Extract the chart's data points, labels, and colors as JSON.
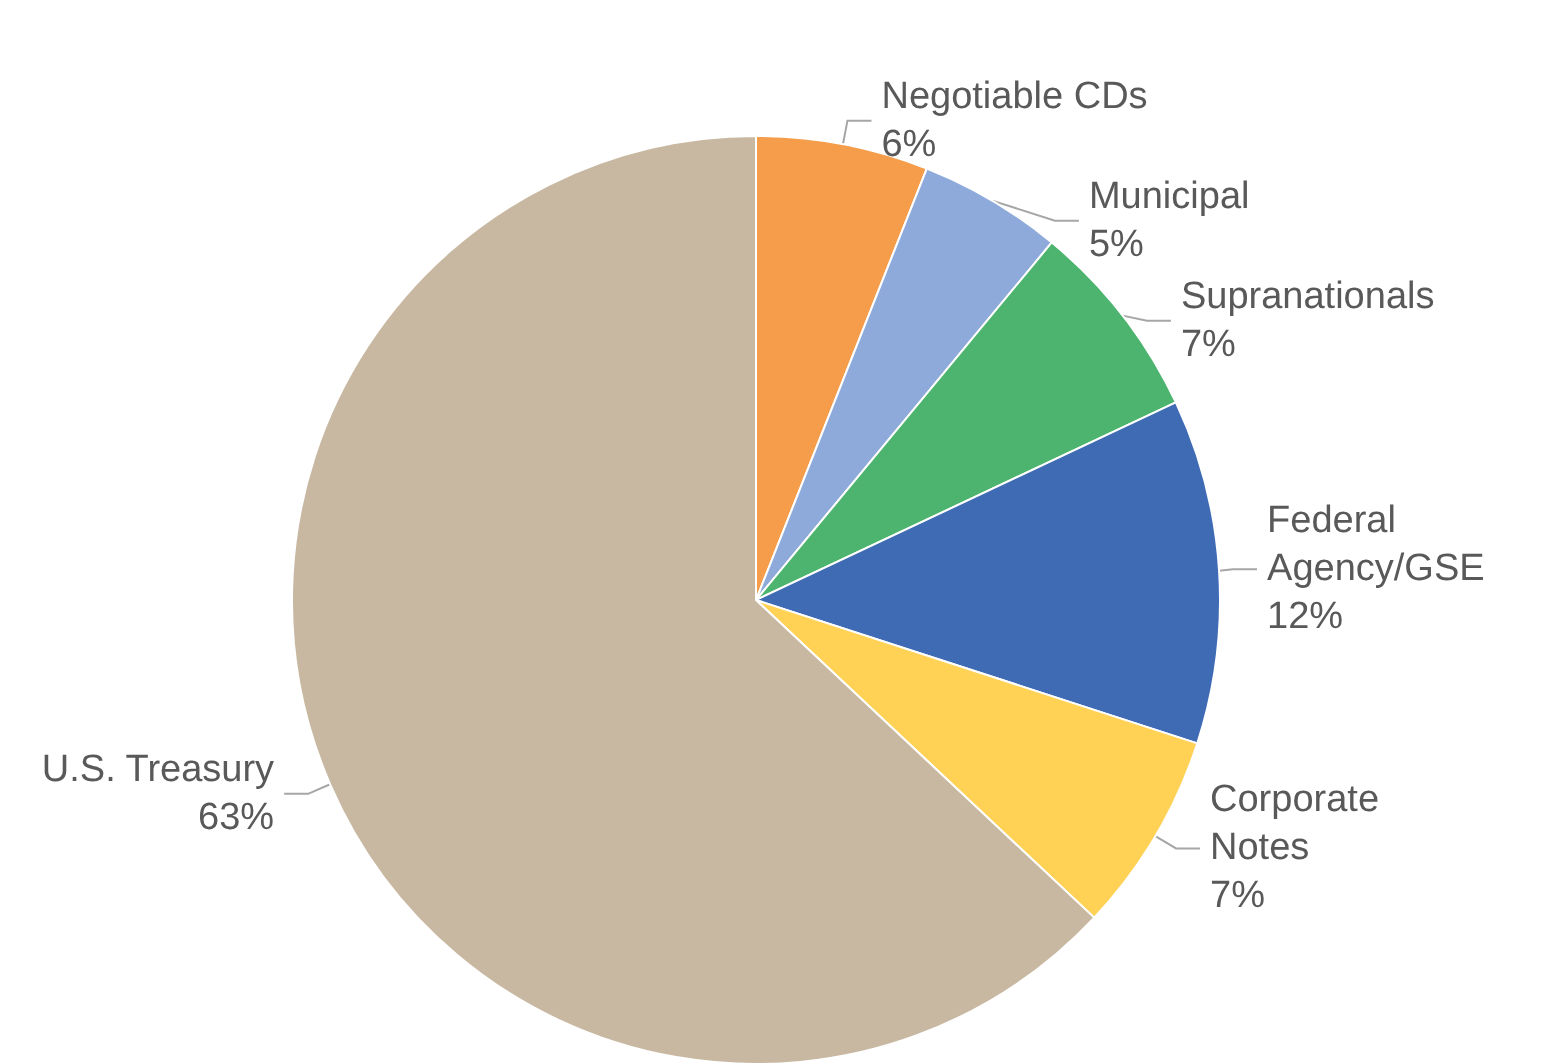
{
  "chart_data": {
    "type": "pie",
    "categories": [
      "Negotiable CDs",
      "Municipal",
      "Supranationals",
      "Federal Agency/GSE",
      "Corporate Notes",
      "U.S. Treasury"
    ],
    "values": [
      6,
      5,
      7,
      12,
      7,
      63
    ],
    "value_labels": [
      "6%",
      "5%",
      "7%",
      "12%",
      "7%",
      "63%"
    ],
    "colors": [
      "#f59d4b",
      "#8eaadb",
      "#4cb46e",
      "#3f6bb5",
      "#ffd155",
      "#c8b8a2"
    ],
    "legend": false
  }
}
